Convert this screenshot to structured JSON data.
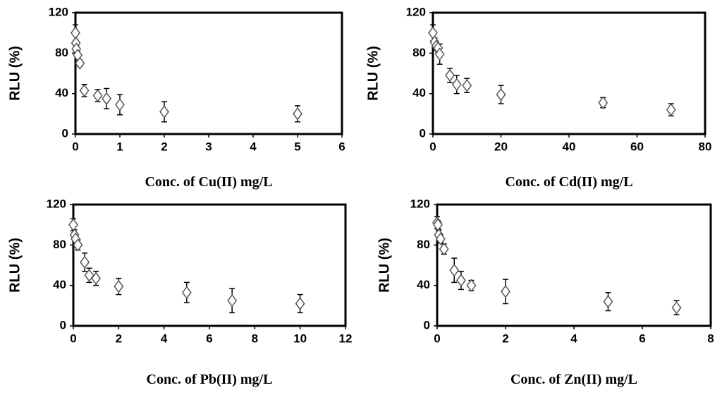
{
  "chart_data": [
    {
      "type": "scatter",
      "x_label": "Conc. of Cu(II) mg/L",
      "y_label": "RLU (%)",
      "x": [
        0,
        0.01,
        0.02,
        0.05,
        0.1,
        0.2,
        0.5,
        0.7,
        1,
        2,
        5
      ],
      "values": [
        100,
        90,
        84,
        78,
        70,
        43,
        38,
        35,
        29,
        22,
        20
      ],
      "errors": [
        8,
        3,
        3,
        3,
        3,
        6,
        6,
        10,
        10,
        10,
        8
      ],
      "color": "#555555",
      "xlim": [
        0,
        6
      ],
      "xticks": [
        0,
        1,
        2,
        3,
        4,
        5,
        6
      ],
      "ylim": [
        0,
        120
      ],
      "yticks": [
        0,
        40,
        80,
        120
      ]
    },
    {
      "type": "scatter",
      "x_label": "Conc. of Cd(II) mg/L",
      "y_label": "RLU (%)",
      "x": [
        0,
        0.5,
        1,
        1.5,
        2,
        5,
        7,
        10,
        20,
        50,
        70
      ],
      "values": [
        100,
        91,
        87,
        85,
        79,
        58,
        49,
        48,
        39,
        31,
        24
      ],
      "errors": [
        8,
        4,
        4,
        4,
        10,
        7,
        9,
        7,
        9,
        5,
        6
      ],
      "color": "#555555",
      "xlim": [
        0,
        80
      ],
      "xticks": [
        0,
        20,
        40,
        60,
        80
      ],
      "ylim": [
        0,
        120
      ],
      "yticks": [
        0,
        40,
        80,
        120
      ]
    },
    {
      "type": "scatter",
      "x_label": "Conc. of  Pb(II) mg/L",
      "y_label": "RLU (%)",
      "x": [
        0,
        0.05,
        0.1,
        0.2,
        0.5,
        0.7,
        1,
        2,
        5,
        7,
        10
      ],
      "values": [
        100,
        90,
        86,
        80,
        63,
        50,
        47,
        39,
        33,
        25,
        22
      ],
      "errors": [
        6,
        5,
        5,
        5,
        9,
        7,
        7,
        8,
        10,
        12,
        9
      ],
      "color": "#555555",
      "xlim": [
        0,
        12
      ],
      "xticks": [
        0,
        2,
        4,
        6,
        8,
        10,
        12
      ],
      "ylim": [
        0,
        120
      ],
      "yticks": [
        0,
        40,
        80,
        120
      ]
    },
    {
      "type": "scatter",
      "x_label": "Conc. of  Zn(II) mg/L",
      "y_label": "RLU (%)",
      "x": [
        0,
        0.02,
        0.05,
        0.1,
        0.2,
        0.5,
        0.7,
        1,
        2,
        5,
        7
      ],
      "values": [
        102,
        100,
        90,
        86,
        76,
        55,
        45,
        40,
        34,
        24,
        18
      ],
      "errors": [
        6,
        4,
        5,
        4,
        5,
        12,
        9,
        5,
        12,
        9,
        7
      ],
      "color": "#555555",
      "xlim": [
        0,
        8
      ],
      "xticks": [
        0,
        2,
        4,
        6,
        8
      ],
      "ylim": [
        0,
        120
      ],
      "yticks": [
        0,
        40,
        80,
        120
      ]
    }
  ]
}
